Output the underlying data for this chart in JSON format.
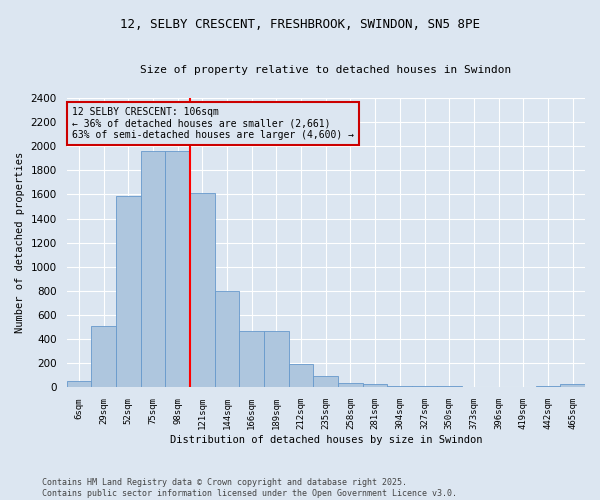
{
  "title": "12, SELBY CRESCENT, FRESHBROOK, SWINDON, SN5 8PE",
  "subtitle": "Size of property relative to detached houses in Swindon",
  "xlabel": "Distribution of detached houses by size in Swindon",
  "ylabel": "Number of detached properties",
  "footer_line1": "Contains HM Land Registry data © Crown copyright and database right 2025.",
  "footer_line2": "Contains public sector information licensed under the Open Government Licence v3.0.",
  "bar_labels": [
    "6sqm",
    "29sqm",
    "52sqm",
    "75sqm",
    "98sqm",
    "121sqm",
    "144sqm",
    "166sqm",
    "189sqm",
    "212sqm",
    "235sqm",
    "258sqm",
    "281sqm",
    "304sqm",
    "327sqm",
    "350sqm",
    "373sqm",
    "396sqm",
    "419sqm",
    "442sqm",
    "465sqm"
  ],
  "bar_values": [
    55,
    510,
    1590,
    1960,
    1960,
    1610,
    800,
    470,
    470,
    195,
    95,
    40,
    30,
    15,
    10,
    10,
    5,
    0,
    0,
    10,
    30
  ],
  "bar_color": "#aec6de",
  "bar_edge_color": "#6699cc",
  "bg_color": "#dce6f1",
  "grid_color": "#ffffff",
  "property_line_x": 4.5,
  "annotation_text": "12 SELBY CRESCENT: 106sqm\n← 36% of detached houses are smaller (2,661)\n63% of semi-detached houses are larger (4,600) →",
  "annotation_box_color": "#cc0000",
  "ylim": [
    0,
    2400
  ],
  "yticks": [
    0,
    200,
    400,
    600,
    800,
    1000,
    1200,
    1400,
    1600,
    1800,
    2000,
    2200,
    2400
  ]
}
